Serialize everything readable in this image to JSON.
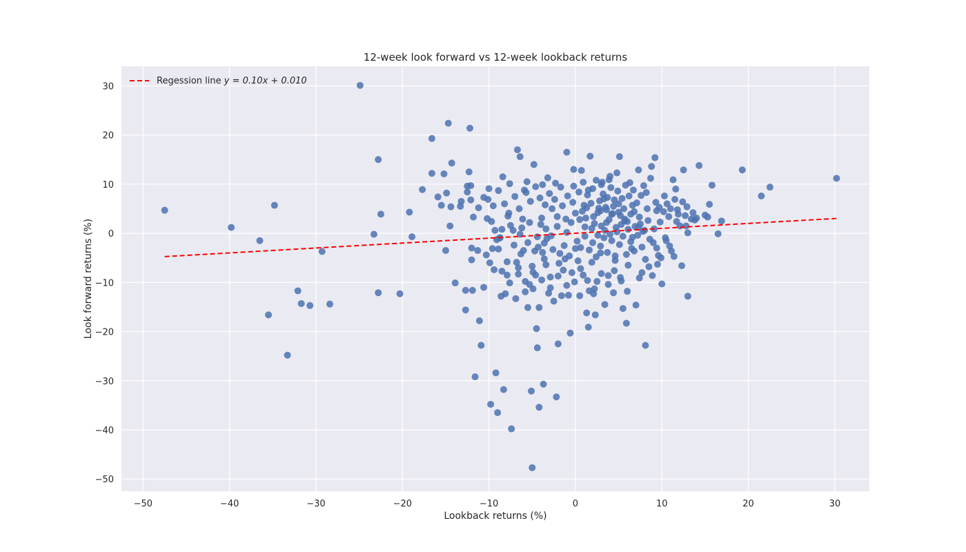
{
  "chart_data": {
    "type": "scatter",
    "title": "12-week look forward vs 12-week lookback returns",
    "xlabel": "Lookback returns (%)",
    "ylabel": "Look forward returns (%)",
    "xlim": [
      -52.5,
      34
    ],
    "ylim": [
      -52.5,
      34
    ],
    "xticks": [
      -50,
      -40,
      -30,
      -20,
      -10,
      0,
      10,
      20,
      30
    ],
    "yticks": [
      -50,
      -40,
      -30,
      -20,
      -10,
      0,
      10,
      20,
      30
    ],
    "xtick_labels": [
      "−50",
      "−40",
      "−30",
      "−20",
      "−10",
      "0",
      "10",
      "20",
      "30"
    ],
    "ytick_labels": [
      "−50",
      "−40",
      "−30",
      "−20",
      "−10",
      "0",
      "10",
      "20",
      "30"
    ],
    "grid": true,
    "legend": {
      "placement": "top-left",
      "label_prefix": "Regession line ",
      "label_math": "y = 0.10x + 0.010"
    },
    "colors": {
      "background": "#eaeaf2",
      "grid": "#ffffff",
      "points": "#4c72b0",
      "regression": "#ff0000"
    },
    "regression": {
      "slope": 0.1,
      "intercept": 0.01,
      "x_range": [
        -47.5,
        30.2
      ],
      "style": "dashed"
    },
    "points": [
      [
        -47.5,
        4.7
      ],
      [
        -39.8,
        1.2
      ],
      [
        -36.5,
        -1.5
      ],
      [
        -35.5,
        -16.6
      ],
      [
        -34.8,
        5.7
      ],
      [
        -33.3,
        -24.8
      ],
      [
        -32.1,
        -11.7
      ],
      [
        -31.7,
        -14.3
      ],
      [
        -30.7,
        -14.7
      ],
      [
        -29.3,
        -3.7
      ],
      [
        -28.4,
        -14.4
      ],
      [
        -24.9,
        30.1
      ],
      [
        -23.3,
        -0.2
      ],
      [
        -22.8,
        15.0
      ],
      [
        -22.8,
        -12.1
      ],
      [
        -22.5,
        3.9
      ],
      [
        -20.3,
        -12.3
      ],
      [
        -19.2,
        4.3
      ],
      [
        -18.9,
        -0.7
      ],
      [
        -17.7,
        8.9
      ],
      [
        -16.6,
        19.3
      ],
      [
        -16.6,
        12.2
      ],
      [
        -15.9,
        7.4
      ],
      [
        -15.5,
        5.7
      ],
      [
        -15.2,
        12.1
      ],
      [
        -15.0,
        -3.5
      ],
      [
        -14.9,
        8.2
      ],
      [
        -14.7,
        22.4
      ],
      [
        -14.5,
        1.5
      ],
      [
        -14.4,
        5.4
      ],
      [
        -14.3,
        14.3
      ],
      [
        -13.9,
        -10.1
      ],
      [
        -13.3,
        5.5
      ],
      [
        -13.2,
        6.5
      ],
      [
        -12.7,
        -11.6
      ],
      [
        -12.7,
        -15.6
      ],
      [
        -12.5,
        8.4
      ],
      [
        -12.5,
        9.6
      ],
      [
        -12.3,
        12.5
      ],
      [
        -12.2,
        21.4
      ],
      [
        -12.1,
        9.7
      ],
      [
        -12.1,
        6.8
      ],
      [
        -12.0,
        -3.0
      ],
      [
        -12.0,
        -5.4
      ],
      [
        -11.9,
        -11.6
      ],
      [
        -11.6,
        -29.2
      ],
      [
        -11.3,
        -3.5
      ],
      [
        -11.1,
        -17.8
      ],
      [
        -10.9,
        -22.8
      ],
      [
        -10.6,
        -11.0
      ],
      [
        -10.2,
        3.0
      ],
      [
        -10.1,
        6.9
      ],
      [
        -9.9,
        -6.0
      ],
      [
        -9.8,
        -34.8
      ],
      [
        -9.6,
        -3.1
      ],
      [
        -9.3,
        0.6
      ],
      [
        -9.2,
        -28.4
      ],
      [
        -9.0,
        -36.5
      ],
      [
        -8.9,
        -3.2
      ],
      [
        -8.8,
        -1.0
      ],
      [
        -8.6,
        -12.8
      ],
      [
        -8.5,
        -7.7
      ],
      [
        -8.4,
        11.5
      ],
      [
        -8.3,
        -31.8
      ],
      [
        -8.1,
        -12.3
      ],
      [
        -7.9,
        -8.5
      ],
      [
        -7.8,
        3.5
      ],
      [
        -7.6,
        10.1
      ],
      [
        -7.4,
        -39.8
      ],
      [
        -7.2,
        0.6
      ],
      [
        -6.9,
        -13.3
      ],
      [
        -6.8,
        -5.9
      ],
      [
        -6.7,
        17.0
      ],
      [
        -6.6,
        -7.0
      ],
      [
        -6.4,
        15.6
      ],
      [
        -6.1,
        2.9
      ],
      [
        -6.0,
        -3.5
      ],
      [
        -5.8,
        -9.8
      ],
      [
        -5.7,
        8.3
      ],
      [
        -5.5,
        -15.1
      ],
      [
        -5.3,
        -10.4
      ],
      [
        -5.1,
        -32.1
      ],
      [
        -5.0,
        -47.7
      ],
      [
        -4.9,
        -11.3
      ],
      [
        -4.8,
        14.0
      ],
      [
        -4.7,
        -3.6
      ],
      [
        -4.6,
        -8.5
      ],
      [
        -4.5,
        -19.4
      ],
      [
        -4.4,
        -23.3
      ],
      [
        -4.2,
        -35.4
      ],
      [
        -4.2,
        -15.1
      ],
      [
        -4.0,
        1.8
      ],
      [
        -3.8,
        -3.9
      ],
      [
        -3.7,
        -30.7
      ],
      [
        -3.6,
        -2.0
      ],
      [
        -3.4,
        -6.4
      ],
      [
        -3.2,
        11.3
      ],
      [
        -3.1,
        -12.2
      ],
      [
        -2.9,
        -8.9
      ],
      [
        -2.7,
        5.0
      ],
      [
        -2.5,
        -13.8
      ],
      [
        -2.2,
        -33.3
      ],
      [
        -2.1,
        3.4
      ],
      [
        -2.0,
        -22.5
      ],
      [
        -1.8,
        -4.1
      ],
      [
        -1.6,
        -12.7
      ],
      [
        -1.4,
        -7.5
      ],
      [
        -1.2,
        -5.2
      ],
      [
        -1.1,
        2.9
      ],
      [
        -1.0,
        16.5
      ],
      [
        -0.8,
        -12.6
      ],
      [
        -0.6,
        -20.3
      ],
      [
        -0.4,
        -8.0
      ],
      [
        -0.2,
        13.0
      ],
      [
        0.0,
        -3.1
      ],
      [
        0.3,
        -5.6
      ],
      [
        0.5,
        -12.7
      ],
      [
        0.7,
        12.8
      ],
      [
        0.9,
        -8.5
      ],
      [
        1.1,
        1.3
      ],
      [
        1.3,
        -16.2
      ],
      [
        1.5,
        -19.1
      ],
      [
        1.6,
        -11.7
      ],
      [
        1.7,
        15.7
      ],
      [
        1.9,
        -5.9
      ],
      [
        2.1,
        -12.3
      ],
      [
        2.3,
        -16.6
      ],
      [
        2.5,
        -9.8
      ],
      [
        2.7,
        5.1
      ],
      [
        2.9,
        -4.0
      ],
      [
        3.1,
        10.4
      ],
      [
        3.3,
        7.0
      ],
      [
        3.4,
        -14.5
      ],
      [
        3.6,
        4.8
      ],
      [
        3.8,
        -8.6
      ],
      [
        4.0,
        11.6
      ],
      [
        4.2,
        3.9
      ],
      [
        4.4,
        -12.1
      ],
      [
        4.6,
        -4.6
      ],
      [
        4.8,
        12.3
      ],
      [
        5.0,
        6.0
      ],
      [
        5.1,
        15.6
      ],
      [
        5.3,
        -9.7
      ],
      [
        5.5,
        -15.3
      ],
      [
        5.7,
        2.5
      ],
      [
        5.9,
        -18.3
      ],
      [
        6.1,
        -6.5
      ],
      [
        6.3,
        10.3
      ],
      [
        6.5,
        -3.1
      ],
      [
        6.8,
        4.4
      ],
      [
        7.0,
        -14.6
      ],
      [
        7.3,
        12.9
      ],
      [
        7.5,
        1.9
      ],
      [
        7.7,
        -8.0
      ],
      [
        7.9,
        9.7
      ],
      [
        8.1,
        -22.8
      ],
      [
        8.3,
        5.0
      ],
      [
        8.5,
        -6.8
      ],
      [
        8.7,
        11.2
      ],
      [
        8.8,
        13.6
      ],
      [
        9.0,
        -1.9
      ],
      [
        9.2,
        15.4
      ],
      [
        9.4,
        4.6
      ],
      [
        9.6,
        -4.5
      ],
      [
        9.8,
        2.3
      ],
      [
        10.0,
        -10.3
      ],
      [
        10.3,
        7.6
      ],
      [
        10.5,
        -1.5
      ],
      [
        10.8,
        3.4
      ],
      [
        11.1,
        -3.6
      ],
      [
        11.3,
        10.9
      ],
      [
        11.6,
        9.0
      ],
      [
        11.8,
        4.8
      ],
      [
        12.1,
        1.5
      ],
      [
        12.3,
        -6.6
      ],
      [
        12.5,
        12.9
      ],
      [
        12.8,
        1.5
      ],
      [
        13.0,
        -12.8
      ],
      [
        13.0,
        0.1
      ],
      [
        13.6,
        4.2
      ],
      [
        14.3,
        13.8
      ],
      [
        15.0,
        3.7
      ],
      [
        15.5,
        5.9
      ],
      [
        15.8,
        9.8
      ],
      [
        16.5,
        -0.1
      ],
      [
        16.9,
        2.5
      ],
      [
        19.3,
        12.9
      ],
      [
        21.5,
        7.6
      ],
      [
        22.5,
        9.4
      ],
      [
        30.2,
        11.2
      ],
      [
        -0.5,
        2.2
      ],
      [
        0.8,
        4.5
      ],
      [
        1.2,
        3.1
      ],
      [
        1.8,
        6.1
      ],
      [
        2.2,
        2.0
      ],
      [
        2.6,
        4.2
      ],
      [
        3.0,
        1.5
      ],
      [
        3.5,
        5.3
      ],
      [
        3.9,
        2.8
      ],
      [
        4.3,
        4.0
      ],
      [
        4.7,
        1.2
      ],
      [
        5.2,
        3.6
      ],
      [
        5.6,
        5.0
      ],
      [
        6.0,
        2.4
      ],
      [
        6.4,
        3.9
      ],
      [
        6.9,
        1.4
      ],
      [
        7.4,
        3.3
      ],
      [
        7.8,
        0.4
      ],
      [
        8.4,
        2.6
      ],
      [
        9.1,
        0.9
      ],
      [
        -1.5,
        5.6
      ],
      [
        -0.9,
        7.6
      ],
      [
        -0.3,
        6.3
      ],
      [
        0.4,
        8.4
      ],
      [
        1.0,
        5.7
      ],
      [
        1.4,
        7.8
      ],
      [
        2.0,
        9.1
      ],
      [
        2.8,
        6.6
      ],
      [
        3.2,
        8.0
      ],
      [
        3.7,
        7.3
      ],
      [
        4.1,
        9.3
      ],
      [
        4.5,
        6.8
      ],
      [
        4.9,
        8.6
      ],
      [
        5.4,
        7.1
      ],
      [
        5.8,
        9.8
      ],
      [
        6.2,
        7.6
      ],
      [
        6.7,
        8.8
      ],
      [
        7.1,
        6.2
      ],
      [
        7.6,
        7.7
      ],
      [
        8.2,
        8.3
      ],
      [
        -2.4,
        6.9
      ],
      [
        -3.0,
        8.1
      ],
      [
        -3.5,
        5.8
      ],
      [
        -4.1,
        7.2
      ],
      [
        -4.6,
        9.5
      ],
      [
        -5.2,
        6.5
      ],
      [
        -5.9,
        8.8
      ],
      [
        -6.5,
        5.0
      ],
      [
        -7.0,
        7.5
      ],
      [
        -7.7,
        4.1
      ],
      [
        -8.2,
        6.0
      ],
      [
        -8.9,
        8.7
      ],
      [
        -9.5,
        5.6
      ],
      [
        -10.0,
        9.1
      ],
      [
        -10.6,
        7.3
      ],
      [
        -11.2,
        5.2
      ],
      [
        -11.8,
        3.3
      ],
      [
        -9.7,
        2.4
      ],
      [
        -6.2,
        1.1
      ],
      [
        -3.9,
        3.1
      ],
      [
        0.2,
        -1.6
      ],
      [
        0.6,
        -2.9
      ],
      [
        1.1,
        -0.6
      ],
      [
        1.6,
        -3.4
      ],
      [
        2.0,
        -1.9
      ],
      [
        2.4,
        -4.8
      ],
      [
        2.9,
        -2.6
      ],
      [
        3.3,
        -0.9
      ],
      [
        3.7,
        -3.9
      ],
      [
        4.2,
        -1.5
      ],
      [
        4.6,
        -5.5
      ],
      [
        5.1,
        -2.3
      ],
      [
        5.5,
        -0.6
      ],
      [
        5.9,
        -4.3
      ],
      [
        6.4,
        -1.7
      ],
      [
        6.8,
        -3.6
      ],
      [
        7.2,
        -0.4
      ],
      [
        7.7,
        -2.8
      ],
      [
        8.1,
        -5.3
      ],
      [
        8.6,
        -1.2
      ],
      [
        -0.7,
        -4.6
      ],
      [
        -1.3,
        -2.5
      ],
      [
        -1.9,
        -6.1
      ],
      [
        -2.6,
        -3.3
      ],
      [
        -3.3,
        -1.1
      ],
      [
        -3.6,
        -5.2
      ],
      [
        -4.3,
        -2.8
      ],
      [
        -5.0,
        -6.7
      ],
      [
        -5.5,
        -1.9
      ],
      [
        -6.3,
        -4.2
      ],
      [
        -7.1,
        -2.4
      ],
      [
        -7.9,
        -5.8
      ],
      [
        -8.7,
        -0.9
      ],
      [
        -9.4,
        -7.4
      ],
      [
        -10.3,
        -4.4
      ],
      [
        9.4,
        -3.0
      ],
      [
        9.9,
        -5.0
      ],
      [
        10.4,
        -0.9
      ],
      [
        10.9,
        -2.6
      ],
      [
        11.4,
        -4.7
      ],
      [
        9.3,
        6.3
      ],
      [
        9.7,
        5.3
      ],
      [
        10.2,
        4.4
      ],
      [
        10.6,
        6.0
      ],
      [
        11.0,
        5.0
      ],
      [
        11.5,
        6.9
      ],
      [
        11.9,
        3.9
      ],
      [
        12.4,
        6.4
      ],
      [
        12.9,
        5.4
      ],
      [
        13.4,
        2.9
      ],
      [
        14.0,
        3.1
      ],
      [
        15.3,
        3.3
      ],
      [
        13.8,
        2.7
      ],
      [
        12.7,
        3.6
      ],
      [
        11.7,
        2.4
      ],
      [
        1.9,
        1.0
      ],
      [
        2.6,
        -0.4
      ],
      [
        3.4,
        0.6
      ],
      [
        4.0,
        -0.2
      ],
      [
        4.8,
        0.3
      ],
      [
        5.3,
        1.8
      ],
      [
        6.1,
        0.8
      ],
      [
        6.6,
        -0.8
      ],
      [
        7.3,
        1.2
      ],
      [
        8.0,
        0.6
      ],
      [
        -1.0,
        0.2
      ],
      [
        -2.1,
        1.4
      ],
      [
        -2.8,
        -0.5
      ],
      [
        -3.4,
        0.9
      ],
      [
        -4.4,
        -0.7
      ],
      [
        -5.3,
        2.2
      ],
      [
        -6.4,
        -0.2
      ],
      [
        -7.5,
        1.6
      ],
      [
        -8.5,
        0.8
      ],
      [
        -9.1,
        -1.3
      ],
      [
        0.0,
        4.1
      ],
      [
        0.5,
        2.8
      ],
      [
        1.3,
        5.2
      ],
      [
        2.1,
        3.4
      ],
      [
        2.9,
        4.6
      ],
      [
        3.6,
        2.2
      ],
      [
        4.4,
        5.5
      ],
      [
        5.0,
        4.3
      ],
      [
        5.7,
        2.9
      ],
      [
        6.6,
        5.7
      ],
      [
        -0.2,
        9.6
      ],
      [
        0.9,
        10.4
      ],
      [
        1.5,
        8.8
      ],
      [
        2.4,
        10.8
      ],
      [
        3.0,
        9.9
      ],
      [
        3.9,
        10.9
      ],
      [
        -1.7,
        9.4
      ],
      [
        -2.3,
        10.2
      ],
      [
        -3.8,
        9.9
      ],
      [
        -5.6,
        10.5
      ],
      [
        8.9,
        -8.6
      ],
      [
        9.5,
        -6.3
      ],
      [
        7.4,
        -9.1
      ],
      [
        6.0,
        -11.8
      ],
      [
        5.2,
        -9.0
      ],
      [
        4.5,
        -7.6
      ],
      [
        3.8,
        -10.4
      ],
      [
        3.0,
        -8.2
      ],
      [
        2.2,
        -11.3
      ],
      [
        1.4,
        -9.6
      ],
      [
        0.6,
        -7.2
      ],
      [
        -0.1,
        -9.9
      ],
      [
        -1.0,
        -10.6
      ],
      [
        -2.0,
        -8.7
      ],
      [
        -2.9,
        -11.1
      ],
      [
        -3.9,
        -9.5
      ],
      [
        -4.9,
        -7.9
      ],
      [
        -5.8,
        -11.9
      ],
      [
        -6.6,
        -8.3
      ],
      [
        -7.6,
        -10.1
      ]
    ]
  }
}
